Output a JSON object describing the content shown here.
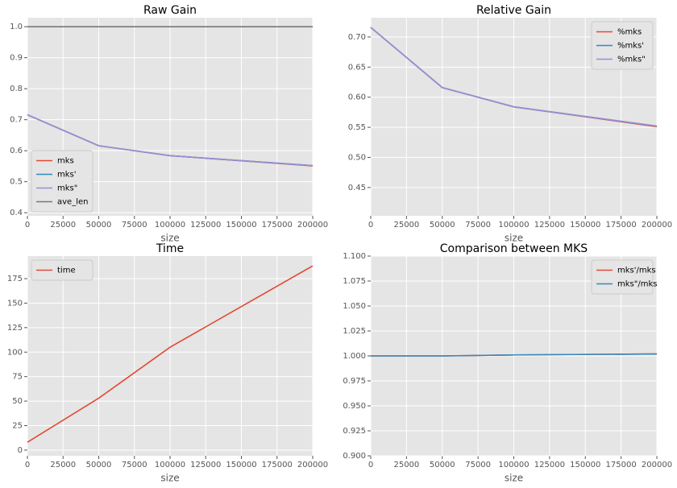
{
  "chart_data": [
    {
      "type": "line",
      "title": "Raw Gain",
      "xlabel": "size",
      "x": [
        0,
        50000,
        100000,
        200000
      ],
      "series": [
        {
          "name": "mks",
          "color": "#E24A33",
          "values": [
            0.716,
            0.616,
            0.584,
            0.551
          ]
        },
        {
          "name": "mks'",
          "color": "#348ABD",
          "values": [
            0.716,
            0.616,
            0.584,
            0.552
          ]
        },
        {
          "name": "mks\"",
          "color": "#988ED5",
          "values": [
            0.716,
            0.616,
            0.584,
            0.552
          ]
        },
        {
          "name": "ave_len",
          "color": "#777777",
          "values": [
            1.0,
            1.0,
            1.0,
            1.0
          ]
        }
      ],
      "xlim": [
        0,
        200000
      ],
      "xticks": [
        0,
        25000,
        50000,
        75000,
        100000,
        125000,
        150000,
        175000,
        200000
      ],
      "ylim": [
        0.39,
        1.029
      ],
      "yticks": [
        0.4,
        0.5,
        0.6,
        0.7,
        0.8,
        0.9,
        {
          "value": 1,
          "label": "1.0"
        }
      ],
      "grid": true,
      "legend": "lower left"
    },
    {
      "type": "line",
      "title": "Relative Gain",
      "xlabel": "size",
      "x": [
        0,
        50000,
        100000,
        200000
      ],
      "series": [
        {
          "name": "%mks",
          "color": "#E24A33",
          "values": [
            0.716,
            0.616,
            0.584,
            0.551
          ]
        },
        {
          "name": "%mks'",
          "color": "#348ABD",
          "values": [
            0.716,
            0.616,
            0.584,
            0.552
          ]
        },
        {
          "name": "%mks\"",
          "color": "#988ED5",
          "values": [
            0.716,
            0.616,
            0.584,
            0.552
          ]
        }
      ],
      "xlim": [
        0,
        200000
      ],
      "xticks": [
        0,
        25000,
        50000,
        75000,
        100000,
        125000,
        150000,
        175000,
        200000
      ],
      "ylim": [
        0.403,
        0.732
      ],
      "yticks": [
        0.45,
        {
          "value": 0.5,
          "label": "0.50"
        },
        0.55,
        {
          "value": 0.6,
          "label": "0.60"
        },
        0.65,
        {
          "value": 0.7,
          "label": "0.70"
        }
      ],
      "grid": true,
      "legend": "upper right"
    },
    {
      "type": "line",
      "title": "Time",
      "xlabel": "size",
      "x": [
        0,
        50000,
        100000,
        200000
      ],
      "series": [
        {
          "name": "time",
          "color": "#E24A33",
          "values": [
            8,
            53,
            105,
            188
          ]
        }
      ],
      "xlim": [
        0,
        200000
      ],
      "xticks": [
        0,
        25000,
        50000,
        75000,
        100000,
        125000,
        150000,
        175000,
        200000
      ],
      "ylim": [
        -5.8,
        198
      ],
      "yticks": [
        0,
        25,
        50,
        75,
        100,
        125,
        150,
        175
      ],
      "grid": true,
      "legend": "upper left"
    },
    {
      "type": "line",
      "title": "Comparison between MKS",
      "xlabel": "size",
      "x": [
        0,
        50000,
        100000,
        200000
      ],
      "series": [
        {
          "name": "mks'/mks",
          "color": "#E24A33",
          "values": [
            1.0,
            1.0,
            1.001,
            1.002
          ]
        },
        {
          "name": "mks\"/mks",
          "color": "#348ABD",
          "values": [
            1.0,
            1.0,
            1.001,
            1.002
          ]
        }
      ],
      "xlim": [
        0,
        200000
      ],
      "xticks": [
        0,
        25000,
        50000,
        75000,
        100000,
        125000,
        150000,
        175000,
        200000
      ],
      "ylim": [
        0.9,
        1.1
      ],
      "yticks": [
        {
          "value": 0.9,
          "label": "0.900"
        },
        {
          "value": 0.925,
          "label": "0.925"
        },
        {
          "value": 0.95,
          "label": "0.950"
        },
        {
          "value": 0.975,
          "label": "0.975"
        },
        {
          "value": 1.0,
          "label": "1.000"
        },
        {
          "value": 1.025,
          "label": "1.025"
        },
        {
          "value": 1.05,
          "label": "1.050"
        },
        {
          "value": 1.075,
          "label": "1.075"
        },
        {
          "value": 1.1,
          "label": "1.100"
        }
      ],
      "grid": true,
      "legend": "upper right"
    }
  ]
}
